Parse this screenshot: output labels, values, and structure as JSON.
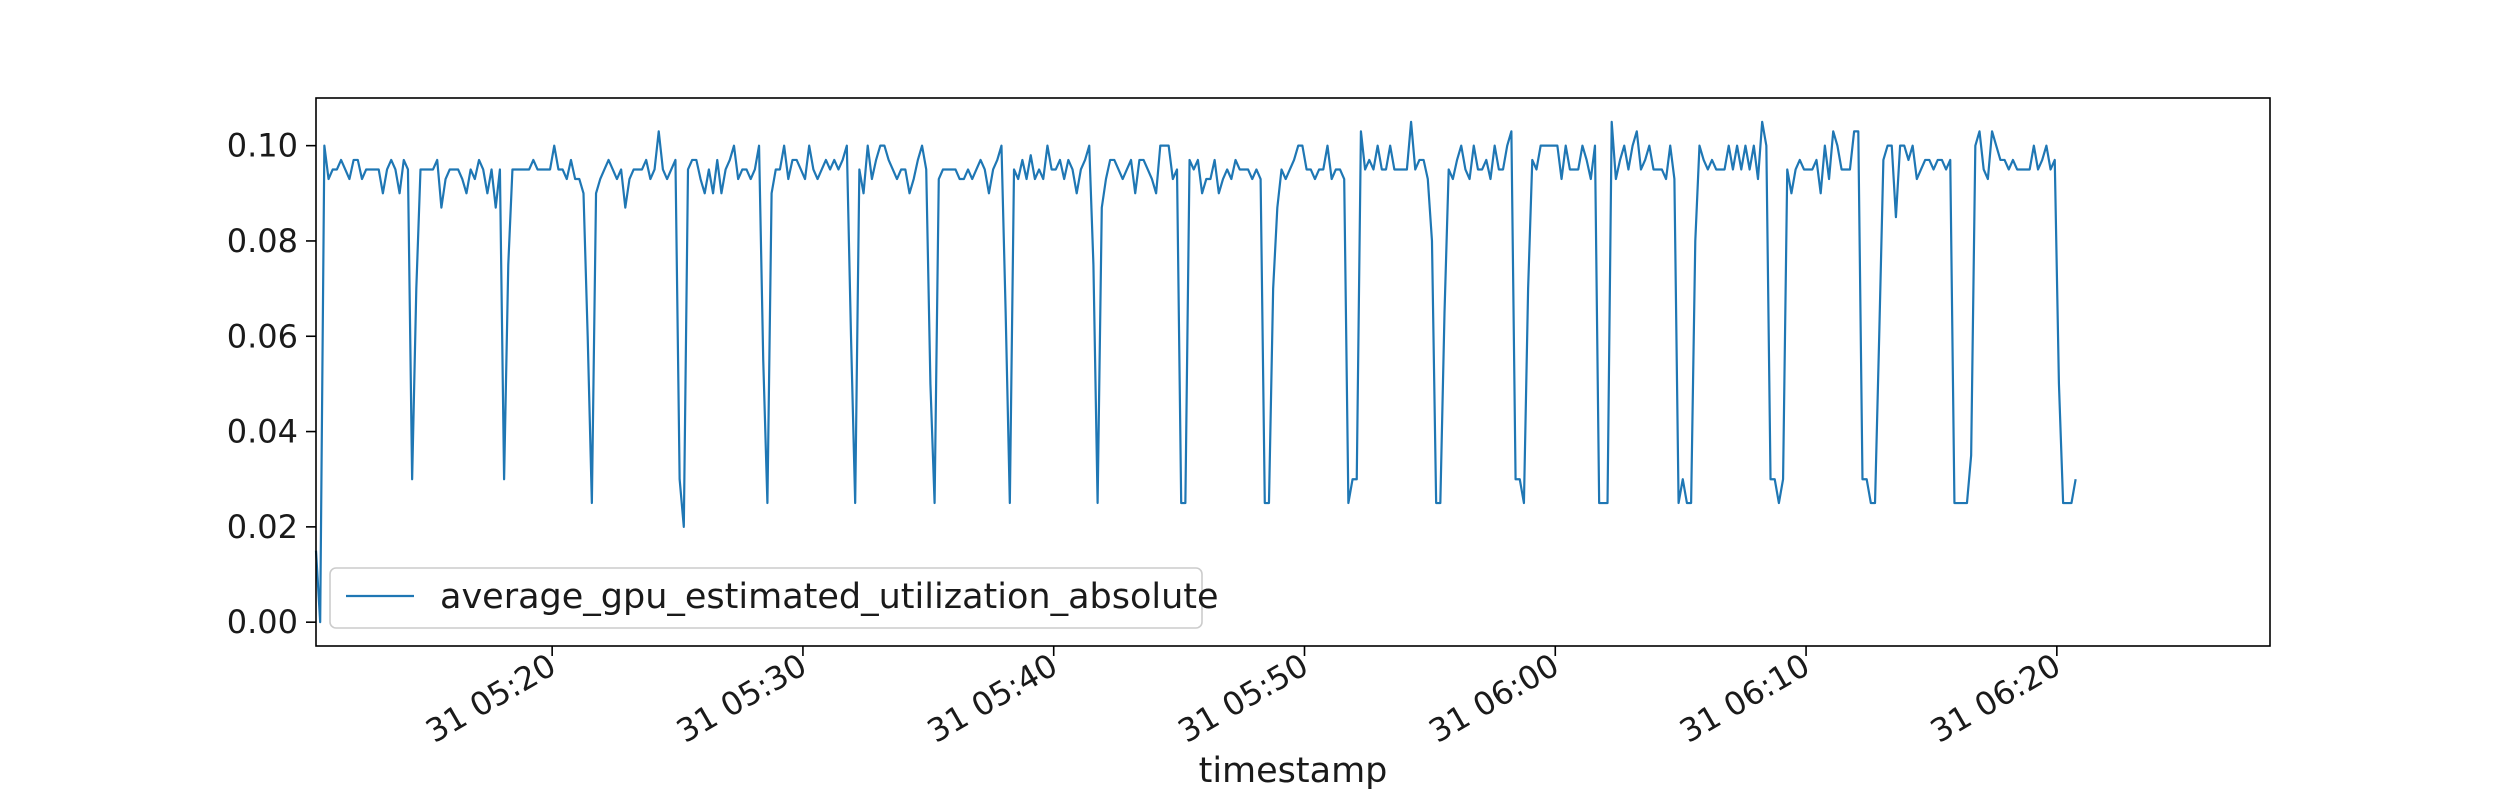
{
  "chart_data": {
    "type": "line",
    "xlabel": "timestamp",
    "ylabel": "",
    "title": "",
    "x_range": [
      "31 05:10:35",
      "31 06:28:30"
    ],
    "ylim": [
      -0.005,
      0.11
    ],
    "x_ticks": [
      {
        "t": "31 05:20:00",
        "label": "31 05:20"
      },
      {
        "t": "31 05:30:00",
        "label": "31 05:30"
      },
      {
        "t": "31 05:40:00",
        "label": "31 05:40"
      },
      {
        "t": "31 05:50:00",
        "label": "31 05:50"
      },
      {
        "t": "31 06:00:00",
        "label": "31 06:00"
      },
      {
        "t": "31 06:10:00",
        "label": "31 06:10"
      },
      {
        "t": "31 06:20:00",
        "label": "31 06:20"
      }
    ],
    "y_ticks": [
      {
        "value": 0.0,
        "label": "0.00"
      },
      {
        "value": 0.02,
        "label": "0.02"
      },
      {
        "value": 0.04,
        "label": "0.04"
      },
      {
        "value": 0.06,
        "label": "0.06"
      },
      {
        "value": 0.08,
        "label": "0.08"
      },
      {
        "value": 0.1,
        "label": "0.10"
      }
    ],
    "grid": false,
    "legend_position": "lower-left",
    "series": [
      {
        "name": "average_gpu_estimated_utilization_absolute",
        "color": "#1f77b4",
        "x_start": "31 05:10:35",
        "x_step_seconds": 10,
        "values": [
          0.015,
          0.0,
          0.1,
          0.093,
          0.095,
          0.095,
          0.097,
          0.095,
          0.093,
          0.097,
          0.097,
          0.093,
          0.095,
          0.095,
          0.095,
          0.095,
          0.09,
          0.095,
          0.097,
          0.095,
          0.09,
          0.097,
          0.095,
          0.03,
          0.07,
          0.095,
          0.095,
          0.095,
          0.095,
          0.097,
          0.087,
          0.093,
          0.095,
          0.095,
          0.095,
          0.093,
          0.09,
          0.095,
          0.093,
          0.097,
          0.095,
          0.09,
          0.095,
          0.087,
          0.095,
          0.03,
          0.075,
          0.095,
          0.095,
          0.095,
          0.095,
          0.095,
          0.097,
          0.095,
          0.095,
          0.095,
          0.095,
          0.1,
          0.095,
          0.095,
          0.093,
          0.097,
          0.093,
          0.093,
          0.09,
          0.06,
          0.025,
          0.09,
          0.093,
          0.095,
          0.097,
          0.095,
          0.093,
          0.095,
          0.087,
          0.093,
          0.095,
          0.095,
          0.095,
          0.097,
          0.093,
          0.095,
          0.103,
          0.095,
          0.093,
          0.095,
          0.097,
          0.03,
          0.02,
          0.095,
          0.097,
          0.097,
          0.093,
          0.09,
          0.095,
          0.09,
          0.097,
          0.09,
          0.095,
          0.097,
          0.1,
          0.093,
          0.095,
          0.095,
          0.093,
          0.095,
          0.1,
          0.055,
          0.025,
          0.09,
          0.095,
          0.095,
          0.1,
          0.093,
          0.097,
          0.097,
          0.095,
          0.093,
          0.1,
          0.095,
          0.093,
          0.095,
          0.097,
          0.095,
          0.097,
          0.095,
          0.097,
          0.1,
          0.06,
          0.025,
          0.095,
          0.09,
          0.1,
          0.093,
          0.097,
          0.1,
          0.1,
          0.097,
          0.095,
          0.093,
          0.095,
          0.095,
          0.09,
          0.093,
          0.097,
          0.1,
          0.095,
          0.05,
          0.025,
          0.093,
          0.095,
          0.095,
          0.095,
          0.095,
          0.093,
          0.093,
          0.095,
          0.093,
          0.095,
          0.097,
          0.095,
          0.09,
          0.095,
          0.097,
          0.1,
          0.065,
          0.025,
          0.095,
          0.093,
          0.097,
          0.093,
          0.098,
          0.093,
          0.095,
          0.093,
          0.1,
          0.095,
          0.095,
          0.097,
          0.093,
          0.097,
          0.095,
          0.09,
          0.095,
          0.097,
          0.1,
          0.075,
          0.025,
          0.087,
          0.093,
          0.097,
          0.097,
          0.095,
          0.093,
          0.095,
          0.097,
          0.09,
          0.097,
          0.097,
          0.095,
          0.093,
          0.09,
          0.1,
          0.1,
          0.1,
          0.093,
          0.095,
          0.025,
          0.025,
          0.097,
          0.095,
          0.097,
          0.09,
          0.093,
          0.093,
          0.097,
          0.09,
          0.093,
          0.095,
          0.093,
          0.097,
          0.095,
          0.095,
          0.095,
          0.093,
          0.095,
          0.093,
          0.025,
          0.025,
          0.07,
          0.087,
          0.095,
          0.093,
          0.095,
          0.097,
          0.1,
          0.1,
          0.095,
          0.095,
          0.093,
          0.095,
          0.095,
          0.1,
          0.093,
          0.095,
          0.095,
          0.093,
          0.025,
          0.03,
          0.03,
          0.103,
          0.095,
          0.097,
          0.095,
          0.1,
          0.095,
          0.095,
          0.1,
          0.095,
          0.095,
          0.095,
          0.095,
          0.105,
          0.095,
          0.097,
          0.097,
          0.093,
          0.08,
          0.025,
          0.025,
          0.065,
          0.095,
          0.093,
          0.097,
          0.1,
          0.095,
          0.093,
          0.1,
          0.095,
          0.095,
          0.097,
          0.093,
          0.1,
          0.095,
          0.095,
          0.1,
          0.103,
          0.03,
          0.03,
          0.025,
          0.07,
          0.097,
          0.095,
          0.1,
          0.1,
          0.1,
          0.1,
          0.1,
          0.093,
          0.1,
          0.095,
          0.095,
          0.095,
          0.1,
          0.097,
          0.093,
          0.1,
          0.025,
          0.025,
          0.025,
          0.105,
          0.093,
          0.097,
          0.1,
          0.095,
          0.1,
          0.103,
          0.095,
          0.097,
          0.1,
          0.095,
          0.095,
          0.095,
          0.093,
          0.1,
          0.093,
          0.025,
          0.03,
          0.025,
          0.025,
          0.08,
          0.1,
          0.097,
          0.095,
          0.097,
          0.095,
          0.095,
          0.095,
          0.1,
          0.095,
          0.1,
          0.095,
          0.1,
          0.095,
          0.1,
          0.093,
          0.105,
          0.1,
          0.03,
          0.03,
          0.025,
          0.03,
          0.095,
          0.09,
          0.095,
          0.097,
          0.095,
          0.095,
          0.095,
          0.097,
          0.09,
          0.1,
          0.093,
          0.103,
          0.1,
          0.095,
          0.095,
          0.095,
          0.103,
          0.103,
          0.03,
          0.03,
          0.025,
          0.025,
          0.06,
          0.097,
          0.1,
          0.1,
          0.085,
          0.1,
          0.1,
          0.097,
          0.1,
          0.093,
          0.095,
          0.097,
          0.097,
          0.095,
          0.097,
          0.097,
          0.095,
          0.097,
          0.025,
          0.025,
          0.025,
          0.025,
          0.035,
          0.1,
          0.103,
          0.095,
          0.093,
          0.103,
          0.1,
          0.097,
          0.097,
          0.095,
          0.097,
          0.095,
          0.095,
          0.095,
          0.095,
          0.1,
          0.095,
          0.097,
          0.1,
          0.095,
          0.097,
          0.05,
          0.025,
          0.025,
          0.025,
          0.03
        ]
      }
    ]
  }
}
